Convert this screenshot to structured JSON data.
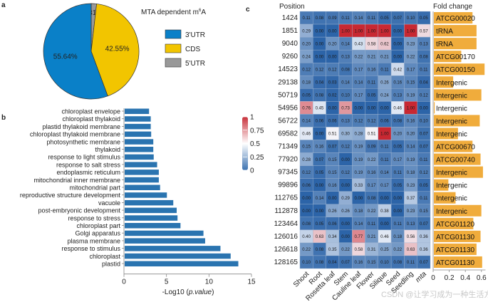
{
  "panel_labels": {
    "a": "a",
    "b": "b",
    "c": "c"
  },
  "watermark": "CSDN @让学习成为一种生活方式",
  "chart_data": [
    {
      "panel": "a",
      "type": "pie",
      "title": "MTA dependent m6A",
      "title_main": "MTA dependent m",
      "title_sup": "6",
      "title_end": "A",
      "legend_position": "right",
      "slices": [
        {
          "label": "5'UTR",
          "value": 1.81,
          "display": "1.81%",
          "color": "#999999"
        },
        {
          "label": "CDS",
          "value": 42.55,
          "display": "42.55%",
          "color": "#f2c500"
        },
        {
          "label": "3'UTR",
          "value": 55.64,
          "display": "55.64%",
          "color": "#0a80c8"
        }
      ],
      "legend": [
        {
          "label": "3'UTR",
          "color": "#0a80c8"
        },
        {
          "label": "CDS",
          "color": "#f2c500"
        },
        {
          "label": "5'UTR",
          "color": "#999999"
        }
      ]
    },
    {
      "panel": "b",
      "type": "bar",
      "orientation": "horizontal",
      "xlabel": "-Log10 (p.value)",
      "xlabel_main": "-Log10 (",
      "xlabel_italic": "p.value",
      "xlabel_end": ")",
      "xlim": [
        0,
        15
      ],
      "xticks": [
        0,
        5,
        10,
        15
      ],
      "bar_color": "#2a74b0",
      "categories": [
        "chloroplast envelope",
        "chloroplast thylakoid",
        "plastid thylakoid membrane",
        "chloroplast thylakoid membrane",
        "photosynthetic membrane",
        "thylakoid",
        "response to light stimulus",
        "response to salt stress",
        "endoplasmic reticulum",
        "mitochondrial inner membrane",
        "mitochondrial part",
        "reproductive structure development",
        "vacuole",
        "post-embryonic development",
        "response to stress",
        "chloroplast part",
        "Golgi apparatus",
        "plasma membrane",
        "response to stimulus",
        "chloroplast",
        "plastid"
      ],
      "values": [
        2.95,
        3.15,
        3.15,
        3.2,
        3.45,
        3.45,
        3.5,
        3.9,
        4.1,
        4.1,
        4.25,
        5.05,
        5.8,
        6.2,
        6.3,
        6.65,
        9.35,
        9.55,
        11.35,
        12.55,
        13.45
      ]
    },
    {
      "panel": "c",
      "type": "heatmap",
      "row_header": "Position",
      "colorbar": {
        "ticks": [
          "1",
          "0.75",
          "0.5",
          "0.25",
          "0"
        ],
        "range": [
          0,
          1
        ],
        "low_color": "#3c72b0",
        "mid_color": "#ffffff",
        "high_color": "#c8303a"
      },
      "columns": [
        "Shoot",
        "Root",
        "Rosetta leaf",
        "Stem",
        "Cauline leaf",
        "Flower",
        "Silique",
        "Seed",
        "Seedling",
        "mta"
      ],
      "italic_columns": [
        "mta"
      ],
      "rows": [
        "1424",
        "1851",
        "9040",
        "9260",
        "14523",
        "29138",
        "50719",
        "54956",
        "56722",
        "69582",
        "71349",
        "77920",
        "97345",
        "99896",
        "112765",
        "112878",
        "123464",
        "126016",
        "126618",
        "128165"
      ],
      "values": [
        [
          0.11,
          0.08,
          0.09,
          0.11,
          0.14,
          0.11,
          0.05,
          0.07,
          0.1,
          0.05
        ],
        [
          0.29,
          0.0,
          0.0,
          1.0,
          1.0,
          1.0,
          1.0,
          0.0,
          1.0,
          0.57
        ],
        [
          0.2,
          0.0,
          0.2,
          0.14,
          0.43,
          0.58,
          0.62,
          0.0,
          0.23,
          0.13
        ],
        [
          0.24,
          0.0,
          0.0,
          0.13,
          0.22,
          0.21,
          0.21,
          0.0,
          0.22,
          0.08
        ],
        [
          0.12,
          0.12,
          0.12,
          0.08,
          0.17,
          0.16,
          0.11,
          0.42,
          0.17,
          0.11
        ],
        [
          0.18,
          0.04,
          0.03,
          0.14,
          0.14,
          0.11,
          0.26,
          0.16,
          0.15,
          0.04
        ],
        [
          0.05,
          0.08,
          0.02,
          0.1,
          0.17,
          0.05,
          0.24,
          0.13,
          0.19,
          0.12
        ],
        [
          0.76,
          0.45,
          0.0,
          0.73,
          0.0,
          0.0,
          0.0,
          0.46,
          1.0,
          0.0
        ],
        [
          0.14,
          0.06,
          0.06,
          0.13,
          0.12,
          0.12,
          0.06,
          0.08,
          0.16,
          0.1
        ],
        [
          0.46,
          0.0,
          0.51,
          0.3,
          0.28,
          0.51,
          1.0,
          0.2,
          0.2,
          0.07
        ],
        [
          0.15,
          0.16,
          0.07,
          0.12,
          0.19,
          0.09,
          0.11,
          0.05,
          0.14,
          0.07
        ],
        [
          0.28,
          0.07,
          0.15,
          0.0,
          0.19,
          0.22,
          0.11,
          0.17,
          0.19,
          0.11
        ],
        [
          0.12,
          0.05,
          0.15,
          0.12,
          0.19,
          0.16,
          0.14,
          0.11,
          0.18,
          0.12
        ],
        [
          0.06,
          0.0,
          0.16,
          0.0,
          0.33,
          0.17,
          0.17,
          0.05,
          0.23,
          0.05
        ],
        [
          0.0,
          0.14,
          0.0,
          0.29,
          0.0,
          0.08,
          0.0,
          0.0,
          0.37,
          0.11
        ],
        [
          0.0,
          0.0,
          0.26,
          0.26,
          0.18,
          0.22,
          0.38,
          0.0,
          0.23,
          0.15
        ],
        [
          0.08,
          0.05,
          0.06,
          0.0,
          0.14,
          0.11,
          0.0,
          0.11,
          0.13,
          0.07
        ],
        [
          0.4,
          0.63,
          0.34,
          0.0,
          0.77,
          0.21,
          0.46,
          0.18,
          0.56,
          0.36
        ],
        [
          0.22,
          0.08,
          0.35,
          0.22,
          0.58,
          0.31,
          0.25,
          0.22,
          0.63,
          0.36
        ],
        [
          0.1,
          0.08,
          0.04,
          0.07,
          0.16,
          0.15,
          0.1,
          0.08,
          0.11,
          0.07
        ]
      ]
    },
    {
      "panel": "c-right",
      "type": "bar",
      "orientation": "horizontal",
      "title": "Fold change",
      "xlim": [
        0,
        0.65
      ],
      "xticks": [
        0,
        0.2,
        0.4,
        0.6
      ],
      "bar_color": "#f0ac3c",
      "categories": [
        "ATCG00020",
        "tRNA",
        "tRNA",
        "ATCG00170",
        "ATCG00150",
        "Intergenic",
        "Intergenic",
        "Intergenic",
        "Intergenic",
        "Intergenic",
        "ATCG00670",
        "ATCG00740",
        "Intergenic",
        "Intergenic",
        "Intergenic",
        "Intergenic",
        "ATCG01120",
        "ATCG01130",
        "ATCG01130",
        "ATCG01130"
      ],
      "values": [
        0.48,
        0.53,
        0.53,
        0.34,
        0.63,
        0.24,
        0.59,
        0.01,
        0.57,
        0.3,
        0.48,
        0.58,
        0.61,
        0.18,
        0.27,
        0.59,
        0.49,
        0.58,
        0.53,
        0.6
      ]
    }
  ]
}
